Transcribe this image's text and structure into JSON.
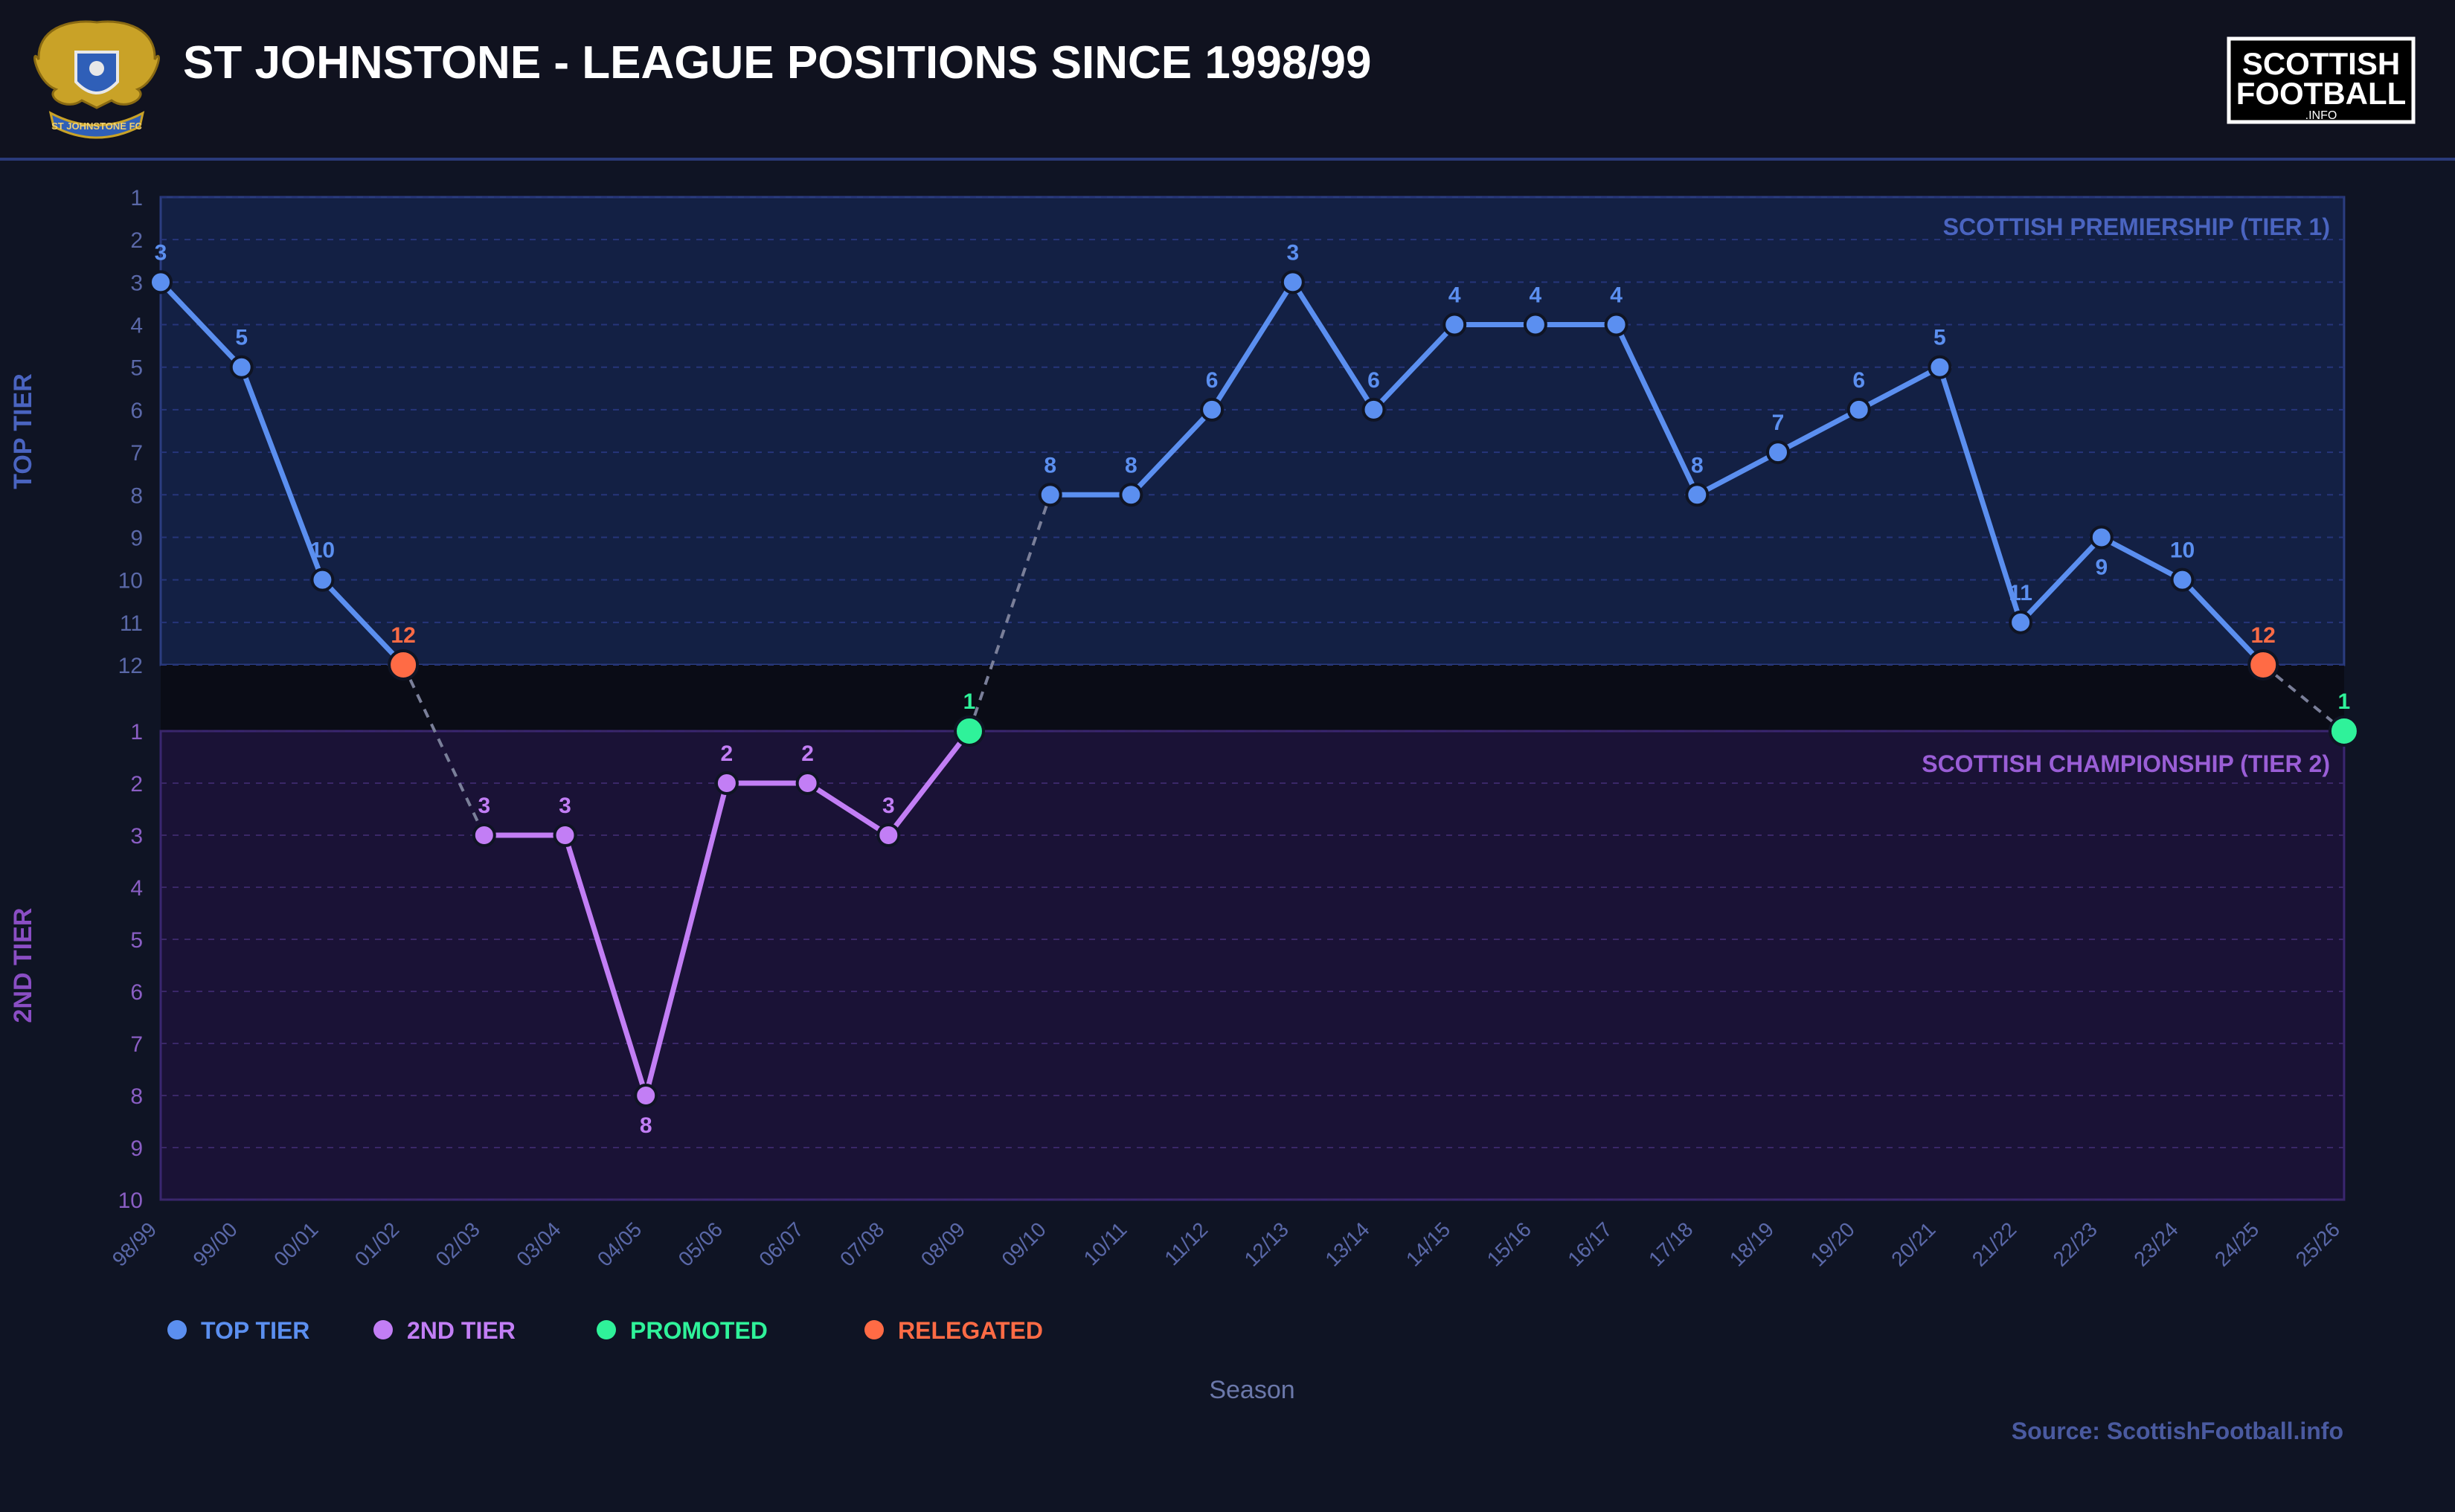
{
  "title": "ST JOHNSTONE - LEAGUE POSITIONS SINCE 1998/99",
  "club_crest": {
    "icon": "st-johnstone-crest-icon",
    "text": "ST JOHNSTONE FC",
    "colors": {
      "gold": "#c9a227",
      "blue": "#2f5fb8"
    }
  },
  "brand_logo": {
    "line1": "SCOTTISH",
    "line2": "FOOTBALL",
    "line3": ".INFO"
  },
  "source": "Source: ScottishFootball.info",
  "colors": {
    "background": "#0f1424",
    "header_bg": "#10121f",
    "top_tier": "#5b8ff0",
    "second_tier": "#c27ef5",
    "promoted": "#2ff29a",
    "relegated": "#ff6b45",
    "top_tier_band": "#132044",
    "second_tier_band": "#1a1236",
    "axis_text_top": "#5a68a8",
    "axis_text_second": "#8a5ec4"
  },
  "chart_data": {
    "type": "line",
    "xlabel": "Season",
    "bands": [
      {
        "name": "SCOTTISH PREMIERSHIP (TIER 1)",
        "axis_label": "TOP TIER",
        "positions": [
          1,
          2,
          3,
          4,
          5,
          6,
          7,
          8,
          9,
          10,
          11,
          12
        ]
      },
      {
        "name": "SCOTTISH CHAMPIONSHIP (TIER 2)",
        "axis_label": "2ND TIER",
        "positions": [
          1,
          2,
          3,
          4,
          5,
          6,
          7,
          8,
          9,
          10
        ]
      }
    ],
    "categories": [
      "98/99",
      "99/00",
      "00/01",
      "01/02",
      "02/03",
      "03/04",
      "04/05",
      "05/06",
      "06/07",
      "07/08",
      "08/09",
      "09/10",
      "10/11",
      "11/12",
      "12/13",
      "13/14",
      "14/15",
      "15/16",
      "16/17",
      "17/18",
      "18/19",
      "19/20",
      "20/21",
      "21/22",
      "22/23",
      "23/24",
      "24/25",
      "25/26"
    ],
    "seasons": [
      {
        "season": "98/99",
        "tier": 1,
        "position": 3,
        "status": "top"
      },
      {
        "season": "99/00",
        "tier": 1,
        "position": 5,
        "status": "top"
      },
      {
        "season": "00/01",
        "tier": 1,
        "position": 10,
        "status": "top"
      },
      {
        "season": "01/02",
        "tier": 1,
        "position": 12,
        "status": "relegated"
      },
      {
        "season": "02/03",
        "tier": 2,
        "position": 3,
        "status": "second"
      },
      {
        "season": "03/04",
        "tier": 2,
        "position": 3,
        "status": "second"
      },
      {
        "season": "04/05",
        "tier": 2,
        "position": 8,
        "status": "second"
      },
      {
        "season": "05/06",
        "tier": 2,
        "position": 2,
        "status": "second"
      },
      {
        "season": "06/07",
        "tier": 2,
        "position": 2,
        "status": "second"
      },
      {
        "season": "07/08",
        "tier": 2,
        "position": 3,
        "status": "second"
      },
      {
        "season": "08/09",
        "tier": 2,
        "position": 1,
        "status": "promoted"
      },
      {
        "season": "09/10",
        "tier": 1,
        "position": 8,
        "status": "top"
      },
      {
        "season": "10/11",
        "tier": 1,
        "position": 8,
        "status": "top"
      },
      {
        "season": "11/12",
        "tier": 1,
        "position": 6,
        "status": "top"
      },
      {
        "season": "12/13",
        "tier": 1,
        "position": 3,
        "status": "top"
      },
      {
        "season": "13/14",
        "tier": 1,
        "position": 6,
        "status": "top"
      },
      {
        "season": "14/15",
        "tier": 1,
        "position": 4,
        "status": "top"
      },
      {
        "season": "15/16",
        "tier": 1,
        "position": 4,
        "status": "top"
      },
      {
        "season": "16/17",
        "tier": 1,
        "position": 4,
        "status": "top"
      },
      {
        "season": "17/18",
        "tier": 1,
        "position": 8,
        "status": "top"
      },
      {
        "season": "18/19",
        "tier": 1,
        "position": 7,
        "status": "top"
      },
      {
        "season": "19/20",
        "tier": 1,
        "position": 6,
        "status": "top"
      },
      {
        "season": "20/21",
        "tier": 1,
        "position": 5,
        "status": "top"
      },
      {
        "season": "21/22",
        "tier": 1,
        "position": 11,
        "status": "top"
      },
      {
        "season": "22/23",
        "tier": 1,
        "position": 9,
        "status": "top"
      },
      {
        "season": "23/24",
        "tier": 1,
        "position": 10,
        "status": "top"
      },
      {
        "season": "24/25",
        "tier": 1,
        "position": 12,
        "status": "relegated"
      },
      {
        "season": "25/26",
        "tier": 2,
        "position": 1,
        "status": "promoted"
      }
    ],
    "legend": {
      "placement": "bottom-left",
      "items": [
        {
          "label": "TOP TIER",
          "status": "top"
        },
        {
          "label": "2ND TIER",
          "status": "second"
        },
        {
          "label": "PROMOTED",
          "status": "promoted"
        },
        {
          "label": "RELEGATED",
          "status": "relegated"
        }
      ]
    },
    "grid": true
  }
}
